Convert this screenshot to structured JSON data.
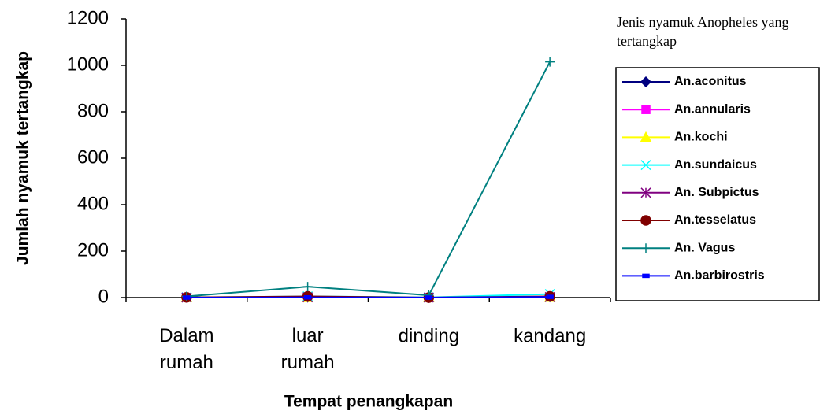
{
  "chart_data": {
    "type": "line",
    "y_label": "Jumlah nyamuk tertangkap",
    "x_label": "Tempat penangkapan",
    "legend_title": "Jenis nyamuk Anopheles yang tertangkap",
    "categories": [
      "Dalam rumah",
      "luar rumah",
      "dinding",
      "kandang"
    ],
    "ylim": [
      0,
      1200
    ],
    "yticks": [
      0,
      200,
      400,
      600,
      800,
      1000,
      1200
    ],
    "legend": "right",
    "series": [
      {
        "name": "An.aconitus",
        "color": "#000080",
        "marker": "diamond",
        "values": [
          1,
          2,
          0,
          3
        ]
      },
      {
        "name": "An.annularis",
        "color": "#ff00ff",
        "marker": "square",
        "values": [
          0,
          1,
          0,
          2
        ]
      },
      {
        "name": "An.kochi",
        "color": "#ffff00",
        "marker": "triangle",
        "values": [
          0,
          0,
          0,
          1
        ]
      },
      {
        "name": "An.sundaicus",
        "color": "#00ffff",
        "marker": "x",
        "values": [
          1,
          5,
          1,
          15
        ]
      },
      {
        "name": "An. Subpictus",
        "color": "#800080",
        "marker": "star",
        "values": [
          0,
          1,
          0,
          2
        ]
      },
      {
        "name": "An.tesselatus",
        "color": "#800000",
        "marker": "circle",
        "values": [
          1,
          5,
          0,
          5
        ]
      },
      {
        "name": "An. Vagus",
        "color": "#008080",
        "marker": "plus",
        "values": [
          5,
          47,
          10,
          1015
        ]
      },
      {
        "name": "An.barbirostris",
        "color": "#0000ff",
        "marker": "dash",
        "values": [
          0,
          1,
          0,
          3
        ]
      }
    ]
  }
}
